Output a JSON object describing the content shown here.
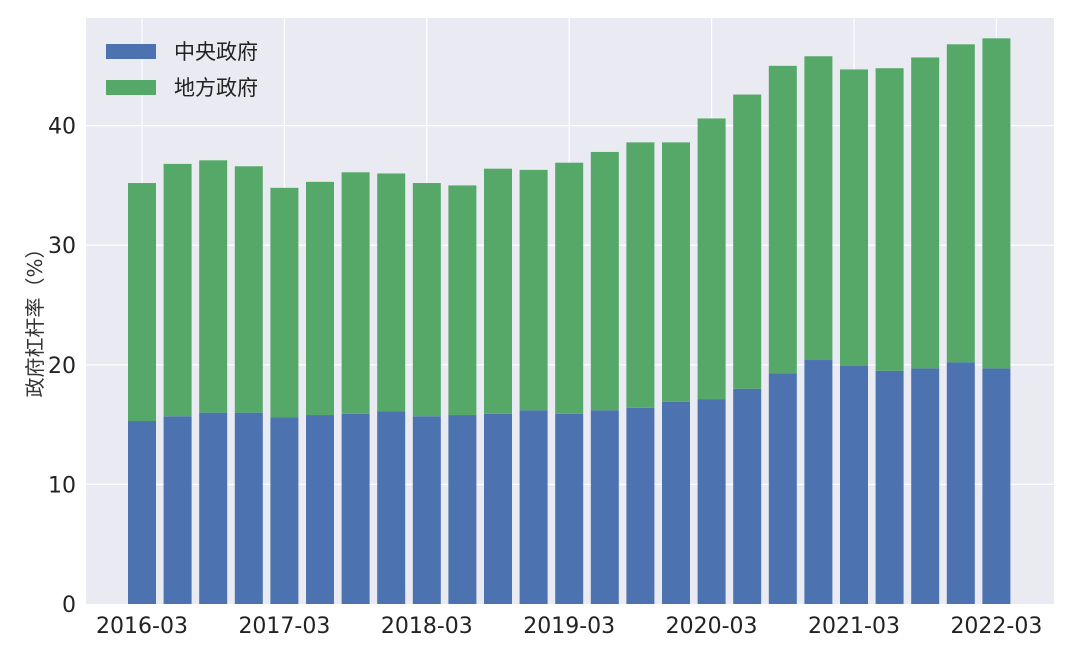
{
  "chart_data": {
    "type": "bar",
    "stacked": true,
    "categories": [
      "2016-03",
      "2016-06",
      "2016-09",
      "2016-12",
      "2017-03",
      "2017-06",
      "2017-09",
      "2017-12",
      "2018-03",
      "2018-06",
      "2018-09",
      "2018-12",
      "2019-03",
      "2019-06",
      "2019-09",
      "2019-12",
      "2020-03",
      "2020-06",
      "2020-09",
      "2020-12",
      "2021-03",
      "2021-06",
      "2021-09",
      "2021-12",
      "2022-03"
    ],
    "x_tick_labels": [
      "2016-03",
      "2017-03",
      "2018-03",
      "2019-03",
      "2020-03",
      "2021-03",
      "2022-03"
    ],
    "series": [
      {
        "name": "中央政府",
        "color": "#4c72b0",
        "values": [
          15.3,
          15.7,
          16.0,
          16.0,
          15.6,
          15.8,
          15.9,
          16.1,
          15.7,
          15.8,
          15.9,
          16.2,
          15.9,
          16.2,
          16.4,
          16.9,
          17.1,
          18.0,
          19.3,
          20.4,
          19.9,
          19.5,
          19.7,
          20.2,
          19.7
        ]
      },
      {
        "name": "地方政府",
        "color": "#55a868",
        "values": [
          19.9,
          21.1,
          21.1,
          20.6,
          19.2,
          19.5,
          20.2,
          19.9,
          19.5,
          19.2,
          20.5,
          20.1,
          21.0,
          21.6,
          22.2,
          21.7,
          23.5,
          24.6,
          25.7,
          25.4,
          24.8,
          25.3,
          26.0,
          26.6,
          27.6
        ]
      }
    ],
    "ylabel": "政府杠杆率（%）",
    "ylim": [
      0,
      49
    ],
    "yticks": [
      0,
      10,
      20,
      30,
      40
    ],
    "grid": true,
    "legend_position": "top-left"
  }
}
